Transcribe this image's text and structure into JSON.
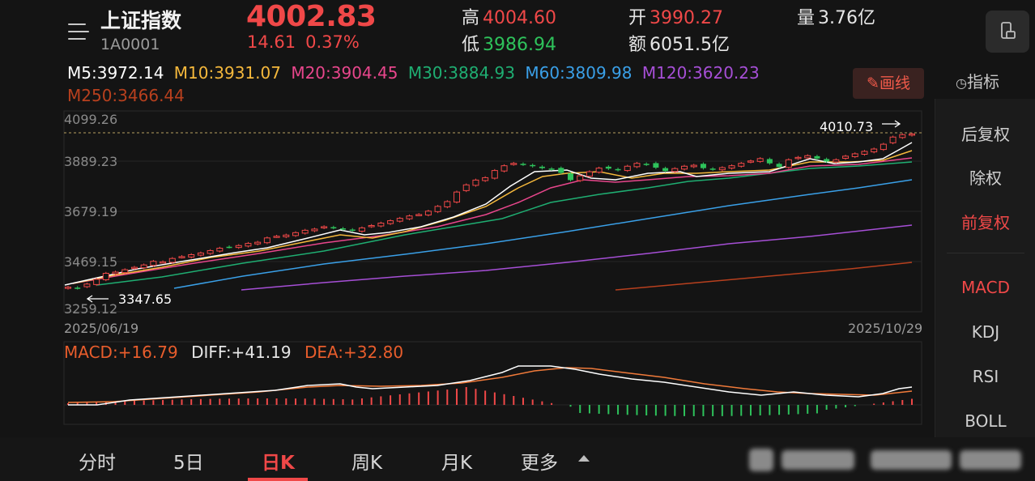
{
  "header": {
    "name": "上证指数",
    "code": "1A0001",
    "price": "4002.83",
    "change": "14.61",
    "change_pct": "0.37%",
    "high_label": "高",
    "high": "4004.60",
    "open_label": "开",
    "open": "3990.27",
    "volume_label": "量",
    "volume": "3.76亿",
    "low_label": "低",
    "low": "3986.94",
    "amount_label": "额",
    "amount": "6051.5亿"
  },
  "ma": {
    "m5": "M5:3972.14",
    "m10": "M10:3931.07",
    "m20": "M20:3904.45",
    "m30": "M30:3884.93",
    "m60": "M60:3809.98",
    "m120": "M120:3620.23",
    "m250": "M250:3466.44"
  },
  "colors": {
    "m5": "#ffffff",
    "m10": "#f5b83c",
    "m20": "#e8468c",
    "m30": "#1fae72",
    "m60": "#3aa0e8",
    "m120": "#a64fd6",
    "m250": "#b8401e",
    "up": "#f04848",
    "down": "#2ec25b"
  },
  "toolbar": {
    "draw_label": "画线",
    "indicator_label": "指标"
  },
  "side_menu": [
    "后复权",
    "除权",
    "前复权",
    "MACD",
    "KDJ",
    "RSI",
    "BOLL"
  ],
  "chart": {
    "y_ticks": [
      "4099.26",
      "3889.23",
      "3679.19",
      "3469.15",
      "3259.12"
    ],
    "max_label": "4010.73",
    "min_label": "3347.65",
    "start_date": "2025/06/19",
    "end_date": "2025/10/29"
  },
  "macd": {
    "macd": "MACD:+16.79",
    "diff": "DIFF:+41.19",
    "dea": "DEA:+32.80"
  },
  "tabs": [
    "分时",
    "5日",
    "日K",
    "周K",
    "月K",
    "更多"
  ],
  "chart_data": {
    "type": "candlestick",
    "title": "",
    "x_range": [
      "2025/06/19",
      "2025/10/29"
    ],
    "ylim": [
      3259.12,
      4099.26
    ],
    "y_ticks": [
      4099.26,
      3889.23,
      3679.19,
      3469.15,
      3259.12
    ],
    "annotations": [
      {
        "label": "4010.73",
        "type": "max"
      },
      {
        "label": "3347.65",
        "type": "min"
      }
    ],
    "close_approx": [
      3362,
      3358,
      3375,
      3395,
      3420,
      3425,
      3435,
      3445,
      3455,
      3470,
      3468,
      3482,
      3490,
      3498,
      3505,
      3515,
      3525,
      3530,
      3536,
      3545,
      3550,
      3568,
      3575,
      3580,
      3590,
      3600,
      3605,
      3615,
      3610,
      3605,
      3598,
      3610,
      3620,
      3630,
      3640,
      3650,
      3660,
      3666,
      3680,
      3700,
      3720,
      3760,
      3790,
      3810,
      3820,
      3850,
      3870,
      3880,
      3875,
      3868,
      3860,
      3855,
      3840,
      3810,
      3828,
      3845,
      3860,
      3858,
      3852,
      3868,
      3880,
      3875,
      3862,
      3848,
      3858,
      3868,
      3872,
      3860,
      3855,
      3862,
      3870,
      3880,
      3890,
      3900,
      3880,
      3865,
      3895,
      3905,
      3912,
      3900,
      3888,
      3895,
      3910,
      3920,
      3930,
      3940,
      3960,
      3990,
      4000,
      4002.83
    ],
    "ma_series": [
      {
        "name": "M5",
        "last": 3972.14
      },
      {
        "name": "M10",
        "last": 3931.07
      },
      {
        "name": "M20",
        "last": 3904.45
      },
      {
        "name": "M30",
        "last": 3884.93
      },
      {
        "name": "M60",
        "last": 3809.98
      },
      {
        "name": "M120",
        "last": 3620.23
      },
      {
        "name": "M250",
        "last": 3466.44
      }
    ],
    "macd": {
      "macd": 16.79,
      "diff": 41.19,
      "dea": 32.8
    }
  }
}
